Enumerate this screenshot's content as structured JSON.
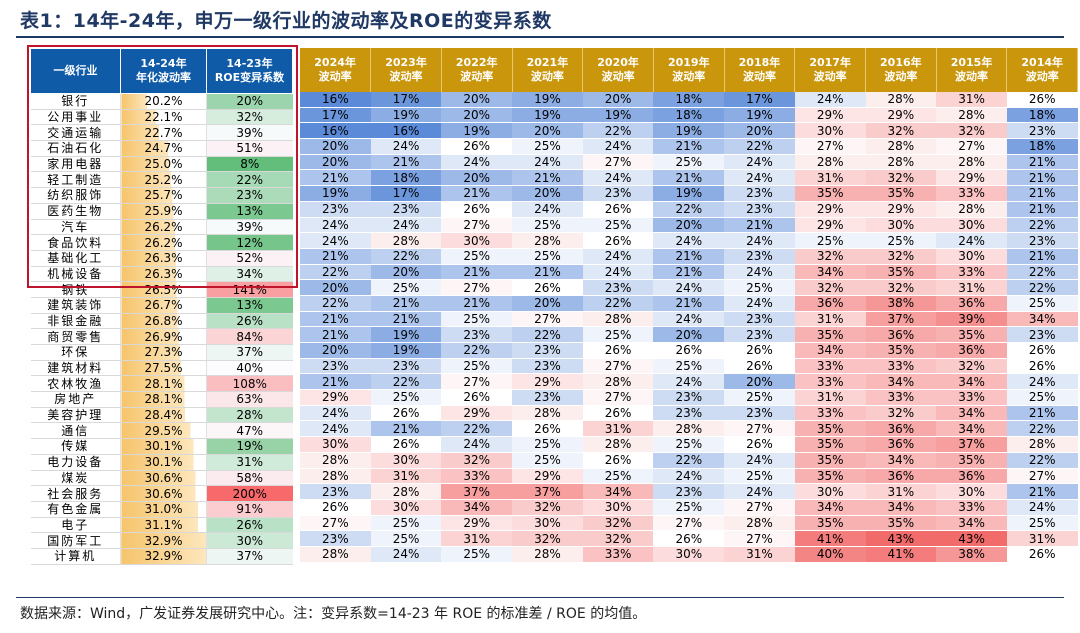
{
  "title": "表1：14年-24年，申万一级行业的波动率及ROE的变异系数",
  "footer": "数据来源：Wind，广发证券发展研究中心。注：变异系数=14-23 年 ROE 的标准差 / ROE 的均值。",
  "left_headers": [
    "一级行业",
    "14-24年\n年化波动率",
    "14-23年\nROE变异系数"
  ],
  "year_headers": [
    "2024年\n波动率",
    "2023年\n波动率",
    "2022年\n波动率",
    "2021年\n波动率",
    "2020年\n波动率",
    "2019年\n波动率",
    "2018年\n波动率",
    "2017年\n波动率",
    "2016年\n波动率",
    "2015年\n波动率",
    "2014年\n波动率"
  ],
  "colors": {
    "header_blue": "#0f5ba8",
    "header_gold": "#c9960c",
    "highlight": "#c0142c"
  },
  "rows": [
    {
      "name": "银行",
      "vol": "20.2%",
      "roe": "20%",
      "years": [
        "16%",
        "17%",
        "20%",
        "19%",
        "20%",
        "18%",
        "17%",
        "24%",
        "28%",
        "31%",
        "26%"
      ]
    },
    {
      "name": "公用事业",
      "vol": "22.1%",
      "roe": "32%",
      "years": [
        "17%",
        "19%",
        "20%",
        "19%",
        "19%",
        "18%",
        "19%",
        "29%",
        "29%",
        "28%",
        "18%"
      ]
    },
    {
      "name": "交通运输",
      "vol": "22.7%",
      "roe": "39%",
      "years": [
        "16%",
        "16%",
        "19%",
        "20%",
        "22%",
        "19%",
        "20%",
        "30%",
        "32%",
        "32%",
        "23%"
      ]
    },
    {
      "name": "石油石化",
      "vol": "24.7%",
      "roe": "51%",
      "years": [
        "20%",
        "24%",
        "26%",
        "25%",
        "24%",
        "21%",
        "22%",
        "27%",
        "28%",
        "27%",
        "18%"
      ]
    },
    {
      "name": "家用电器",
      "vol": "25.0%",
      "roe": "8%",
      "years": [
        "20%",
        "21%",
        "24%",
        "24%",
        "27%",
        "25%",
        "24%",
        "28%",
        "28%",
        "28%",
        "21%"
      ]
    },
    {
      "name": "轻工制造",
      "vol": "25.2%",
      "roe": "22%",
      "years": [
        "21%",
        "18%",
        "20%",
        "21%",
        "24%",
        "21%",
        "24%",
        "31%",
        "32%",
        "29%",
        "21%"
      ]
    },
    {
      "name": "纺织服饰",
      "vol": "25.7%",
      "roe": "23%",
      "years": [
        "19%",
        "17%",
        "21%",
        "20%",
        "23%",
        "19%",
        "23%",
        "35%",
        "35%",
        "33%",
        "21%"
      ]
    },
    {
      "name": "医药生物",
      "vol": "25.9%",
      "roe": "13%",
      "years": [
        "23%",
        "23%",
        "26%",
        "24%",
        "26%",
        "22%",
        "23%",
        "29%",
        "29%",
        "28%",
        "21%"
      ]
    },
    {
      "name": "汽车",
      "vol": "26.2%",
      "roe": "39%",
      "years": [
        "24%",
        "24%",
        "27%",
        "25%",
        "25%",
        "20%",
        "21%",
        "29%",
        "30%",
        "30%",
        "22%"
      ]
    },
    {
      "name": "食品饮料",
      "vol": "26.2%",
      "roe": "12%",
      "years": [
        "24%",
        "28%",
        "30%",
        "28%",
        "26%",
        "24%",
        "24%",
        "25%",
        "25%",
        "24%",
        "23%"
      ]
    },
    {
      "name": "基础化工",
      "vol": "26.3%",
      "roe": "52%",
      "years": [
        "21%",
        "22%",
        "25%",
        "25%",
        "24%",
        "21%",
        "23%",
        "32%",
        "32%",
        "30%",
        "21%"
      ]
    },
    {
      "name": "机械设备",
      "vol": "26.3%",
      "roe": "34%",
      "years": [
        "22%",
        "20%",
        "21%",
        "21%",
        "24%",
        "21%",
        "24%",
        "34%",
        "35%",
        "33%",
        "22%"
      ]
    },
    {
      "name": "钢铁",
      "vol": "26.5%",
      "roe": "141%",
      "years": [
        "20%",
        "25%",
        "27%",
        "26%",
        "23%",
        "24%",
        "25%",
        "32%",
        "32%",
        "31%",
        "22%"
      ]
    },
    {
      "name": "建筑装饰",
      "vol": "26.7%",
      "roe": "13%",
      "years": [
        "22%",
        "21%",
        "21%",
        "20%",
        "22%",
        "21%",
        "24%",
        "36%",
        "38%",
        "36%",
        "25%"
      ]
    },
    {
      "name": "非银金融",
      "vol": "26.8%",
      "roe": "26%",
      "years": [
        "21%",
        "21%",
        "25%",
        "27%",
        "28%",
        "24%",
        "23%",
        "31%",
        "37%",
        "39%",
        "34%"
      ]
    },
    {
      "name": "商贸零售",
      "vol": "26.9%",
      "roe": "84%",
      "years": [
        "21%",
        "19%",
        "23%",
        "22%",
        "25%",
        "20%",
        "23%",
        "35%",
        "36%",
        "35%",
        "23%"
      ]
    },
    {
      "name": "环保",
      "vol": "27.3%",
      "roe": "37%",
      "years": [
        "20%",
        "19%",
        "22%",
        "23%",
        "26%",
        "26%",
        "26%",
        "34%",
        "35%",
        "36%",
        "26%"
      ]
    },
    {
      "name": "建筑材料",
      "vol": "27.5%",
      "roe": "40%",
      "years": [
        "23%",
        "23%",
        "25%",
        "23%",
        "27%",
        "25%",
        "26%",
        "33%",
        "33%",
        "32%",
        "26%"
      ]
    },
    {
      "name": "农林牧渔",
      "vol": "28.1%",
      "roe": "108%",
      "years": [
        "21%",
        "22%",
        "27%",
        "29%",
        "28%",
        "24%",
        "20%",
        "33%",
        "34%",
        "34%",
        "24%"
      ]
    },
    {
      "name": "房地产",
      "vol": "28.1%",
      "roe": "63%",
      "years": [
        "29%",
        "25%",
        "26%",
        "23%",
        "27%",
        "23%",
        "25%",
        "31%",
        "33%",
        "33%",
        "25%"
      ]
    },
    {
      "name": "美容护理",
      "vol": "28.4%",
      "roe": "28%",
      "years": [
        "24%",
        "26%",
        "29%",
        "28%",
        "26%",
        "23%",
        "23%",
        "33%",
        "32%",
        "34%",
        "21%"
      ]
    },
    {
      "name": "通信",
      "vol": "29.5%",
      "roe": "47%",
      "years": [
        "24%",
        "21%",
        "22%",
        "26%",
        "31%",
        "28%",
        "27%",
        "35%",
        "36%",
        "34%",
        "22%"
      ]
    },
    {
      "name": "传媒",
      "vol": "30.1%",
      "roe": "19%",
      "years": [
        "30%",
        "26%",
        "24%",
        "25%",
        "28%",
        "25%",
        "26%",
        "35%",
        "36%",
        "37%",
        "28%"
      ]
    },
    {
      "name": "电力设备",
      "vol": "30.1%",
      "roe": "31%",
      "years": [
        "28%",
        "30%",
        "32%",
        "25%",
        "26%",
        "22%",
        "24%",
        "35%",
        "34%",
        "35%",
        "22%"
      ]
    },
    {
      "name": "煤炭",
      "vol": "30.6%",
      "roe": "58%",
      "years": [
        "28%",
        "31%",
        "33%",
        "29%",
        "25%",
        "24%",
        "25%",
        "35%",
        "36%",
        "36%",
        "27%"
      ]
    },
    {
      "name": "社会服务",
      "vol": "30.6%",
      "roe": "200%",
      "years": [
        "23%",
        "28%",
        "37%",
        "37%",
        "34%",
        "23%",
        "24%",
        "30%",
        "31%",
        "30%",
        "21%"
      ]
    },
    {
      "name": "有色金属",
      "vol": "31.0%",
      "roe": "91%",
      "years": [
        "26%",
        "30%",
        "34%",
        "32%",
        "30%",
        "25%",
        "27%",
        "34%",
        "34%",
        "33%",
        "24%"
      ]
    },
    {
      "name": "电子",
      "vol": "31.1%",
      "roe": "26%",
      "years": [
        "27%",
        "25%",
        "29%",
        "30%",
        "32%",
        "27%",
        "28%",
        "35%",
        "35%",
        "34%",
        "25%"
      ]
    },
    {
      "name": "国防军工",
      "vol": "32.9%",
      "roe": "30%",
      "years": [
        "23%",
        "25%",
        "31%",
        "32%",
        "32%",
        "26%",
        "27%",
        "41%",
        "43%",
        "43%",
        "31%"
      ]
    },
    {
      "name": "计算机",
      "vol": "32.9%",
      "roe": "37%",
      "years": [
        "28%",
        "24%",
        "25%",
        "28%",
        "33%",
        "30%",
        "31%",
        "40%",
        "41%",
        "38%",
        "26%"
      ]
    }
  ]
}
